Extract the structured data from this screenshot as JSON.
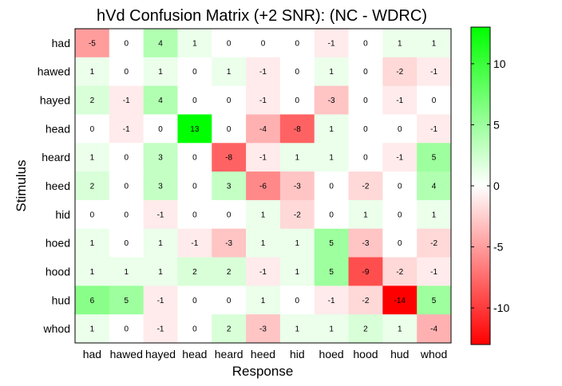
{
  "chart_data": {
    "type": "heatmap",
    "title": "hVd Confusion Matrix (+2 SNR): (NC - WDRC)",
    "xlabel": "Response",
    "ylabel": "Stimulus",
    "x_categories": [
      "had",
      "hawed",
      "hayed",
      "head",
      "heard",
      "heed",
      "hid",
      "hoed",
      "hood",
      "hud",
      "whod"
    ],
    "y_categories": [
      "had",
      "hawed",
      "hayed",
      "head",
      "heard",
      "heed",
      "hid",
      "hoed",
      "hood",
      "hud",
      "whod"
    ],
    "values": [
      [
        -5,
        0,
        4,
        1,
        0,
        0,
        0,
        -1,
        0,
        1,
        1
      ],
      [
        1,
        0,
        1,
        0,
        1,
        -1,
        0,
        1,
        0,
        -2,
        -1
      ],
      [
        2,
        -1,
        4,
        0,
        0,
        -1,
        0,
        -3,
        0,
        -1,
        0
      ],
      [
        0,
        -1,
        0,
        13,
        0,
        -4,
        -8,
        1,
        0,
        0,
        -1
      ],
      [
        1,
        0,
        3,
        0,
        -8,
        -1,
        1,
        1,
        0,
        -1,
        5
      ],
      [
        2,
        0,
        3,
        0,
        3,
        -6,
        -3,
        0,
        -2,
        0,
        4
      ],
      [
        0,
        0,
        -1,
        0,
        0,
        1,
        -2,
        0,
        1,
        0,
        1
      ],
      [
        1,
        0,
        1,
        -1,
        -3,
        1,
        1,
        5,
        -3,
        0,
        -2
      ],
      [
        1,
        1,
        1,
        2,
        2,
        -1,
        1,
        5,
        -9,
        -2,
        -1
      ],
      [
        6,
        5,
        -1,
        0,
        0,
        1,
        0,
        -1,
        -2,
        -14,
        5
      ],
      [
        1,
        0,
        -1,
        0,
        2,
        -3,
        1,
        1,
        2,
        1,
        -4
      ]
    ],
    "colorbar": {
      "range": [
        -13,
        13
      ],
      "ticks": [
        10,
        5,
        0,
        -5,
        -10
      ],
      "tick_labels": [
        "10",
        "5",
        "0",
        "-5",
        "-10"
      ],
      "low_color": "#ff0000",
      "mid_color": "#ffffff",
      "high_color": "#00ff00"
    },
    "grid": false
  }
}
